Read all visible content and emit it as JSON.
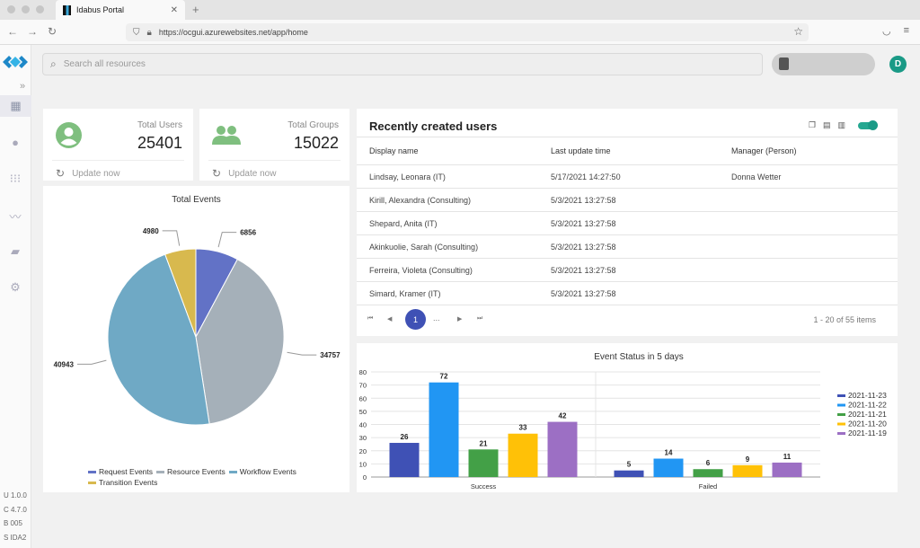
{
  "browser": {
    "tab_title": "Idabus Portal",
    "tab_close": "✕",
    "new_tab": "+",
    "url": "https://ocgui.azurewebsites.net/app/home"
  },
  "sidebar": {
    "collapse": "»",
    "versions": [
      "U 1.0.0",
      "C 4.7.0",
      "B 005",
      "S IDA2"
    ]
  },
  "header": {
    "search_placeholder": "Search all resources",
    "avatar_letter": "D"
  },
  "stats": [
    {
      "label": "Total Users",
      "value": "25401",
      "update": "Update now"
    },
    {
      "label": "Total Groups",
      "value": "15022",
      "update": "Update now"
    }
  ],
  "pie": {
    "title": "Total Events",
    "slices": [
      {
        "name": "Request Events",
        "value": 6856,
        "color": "#6272c6"
      },
      {
        "name": "Resource Events",
        "value": 34757,
        "color": "#a5b0b9"
      },
      {
        "name": "Workflow Events",
        "value": 40943,
        "color": "#6fa9c5"
      },
      {
        "name": "Transition Events",
        "value": 4980,
        "color": "#d8b94e"
      }
    ]
  },
  "users_table": {
    "title": "Recently created users",
    "columns": [
      "Display name",
      "Last update time",
      "Manager (Person)"
    ],
    "rows": [
      [
        "Lindsay, Leonara (IT)",
        "5/17/2021 14:27:50",
        "Donna Wetter"
      ],
      [
        "Kirill, Alexandra (Consulting)",
        "5/3/2021 13:27:58",
        ""
      ],
      [
        "Shepard, Anita (IT)",
        "5/3/2021 13:27:58",
        ""
      ],
      [
        "Akinkuolie, Sarah (Consulting)",
        "5/3/2021 13:27:58",
        ""
      ],
      [
        "Ferreira, Violeta (Consulting)",
        "5/3/2021 13:27:58",
        ""
      ],
      [
        "Simard, Kramer (IT)",
        "5/3/2021 13:27:58",
        ""
      ]
    ],
    "pager": {
      "current": "1",
      "ellipsis": "...",
      "info": "1 - 20 of 55 items"
    }
  },
  "chart_data": [
    {
      "type": "pie",
      "title": "Total Events",
      "categories": [
        "Request Events",
        "Resource Events",
        "Workflow Events",
        "Transition Events"
      ],
      "values": [
        6856,
        34757,
        40943,
        4980
      ],
      "legend": "bottom"
    },
    {
      "type": "bar",
      "title": "Event Status in 5 days",
      "categories": [
        "Success",
        "Failed"
      ],
      "series": [
        {
          "name": "2021-11-23",
          "values": [
            26,
            5
          ],
          "color": "#3f51b5"
        },
        {
          "name": "2021-11-22",
          "values": [
            72,
            14
          ],
          "color": "#2196f3"
        },
        {
          "name": "2021-11-21",
          "values": [
            21,
            6
          ],
          "color": "#43a047"
        },
        {
          "name": "2021-11-20",
          "values": [
            33,
            9
          ],
          "color": "#ffc107"
        },
        {
          "name": "2021-11-19",
          "values": [
            42,
            11
          ],
          "color": "#9c6fc4"
        }
      ],
      "ylim": [
        0,
        80
      ],
      "yticks": [
        0,
        10,
        20,
        30,
        40,
        50,
        60,
        70,
        80
      ],
      "grid": true,
      "legend": "right"
    }
  ]
}
